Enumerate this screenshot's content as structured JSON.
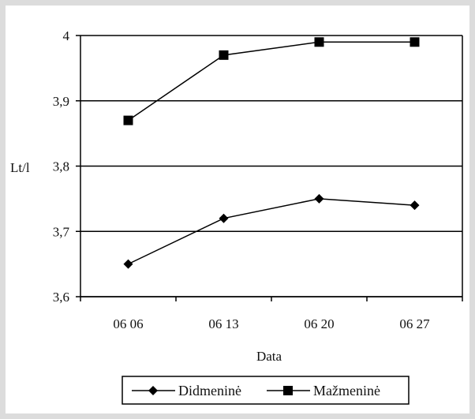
{
  "chart_data": {
    "type": "line",
    "title": "",
    "xlabel": "Data",
    "ylabel": "Lt/l",
    "categories": [
      "06 06",
      "06 13",
      "06 20",
      "06 27"
    ],
    "ylim": [
      3.6,
      4.0
    ],
    "yticks": [
      "3,6",
      "3,7",
      "3,8",
      "3,9",
      "4"
    ],
    "grid": "horizontal",
    "legend_position": "bottom",
    "series": [
      {
        "name": "Didmeninė",
        "marker": "diamond",
        "color": "#000000",
        "values": [
          3.65,
          3.72,
          3.75,
          3.74
        ]
      },
      {
        "name": "Mažmeninė",
        "marker": "square",
        "color": "#000000",
        "values": [
          3.87,
          3.97,
          3.99,
          3.99
        ]
      }
    ]
  }
}
